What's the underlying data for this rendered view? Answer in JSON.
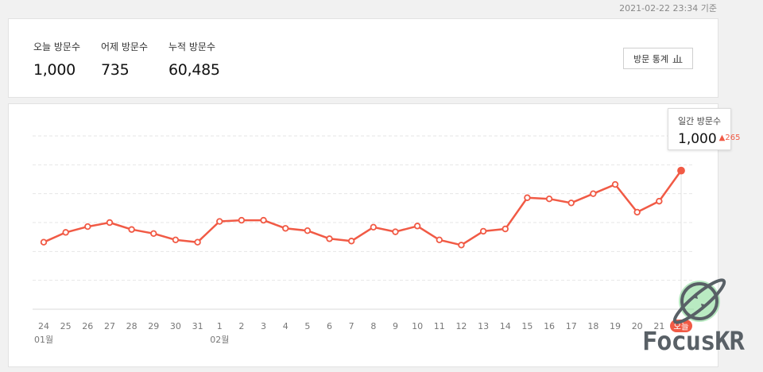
{
  "header": {
    "timestamp": "2021-02-22 23:34 기준"
  },
  "summary": {
    "stats": [
      {
        "label": "오늘 방문수",
        "value": "1,000"
      },
      {
        "label": "어제 방문수",
        "value": "735"
      },
      {
        "label": "누적 방문수",
        "value": "60,485"
      }
    ],
    "button_label": "방문 통계"
  },
  "tooltip": {
    "label": "일간 방문수",
    "value": "1,000",
    "change": "265"
  },
  "today_badge": "오늘",
  "logo_text": "FocusKR",
  "colors": {
    "line": "#f15a45",
    "grid": "#e6e6e6",
    "badge": "#f15a45"
  },
  "chart_data": {
    "type": "line",
    "title": "",
    "x": [
      "24",
      "25",
      "26",
      "27",
      "28",
      "29",
      "30",
      "31",
      "1",
      "2",
      "3",
      "4",
      "5",
      "6",
      "7",
      "8",
      "9",
      "10",
      "11",
      "12",
      "13",
      "14",
      "15",
      "16",
      "17",
      "18",
      "19",
      "20",
      "21",
      "오늘"
    ],
    "month_labels": [
      {
        "at": "24",
        "label": "01월"
      },
      {
        "at": "1",
        "label": "02월"
      }
    ],
    "series": [
      {
        "values": [
          380,
          465,
          515,
          550,
          490,
          455,
          400,
          380,
          560,
          570,
          570,
          500,
          480,
          410,
          390,
          510,
          470,
          520,
          400,
          355,
          475,
          495,
          765,
          755,
          720,
          800,
          880,
          640,
          735,
          1000
        ]
      }
    ],
    "ylim": [
      -200,
      1300
    ],
    "grid": true,
    "highlight_last": true
  }
}
